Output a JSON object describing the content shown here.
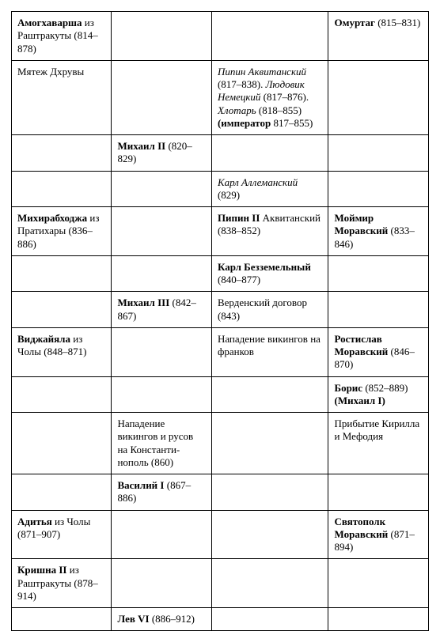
{
  "table": {
    "type": "table",
    "columns": 4,
    "col_widths_pct": [
      24,
      24,
      28,
      24
    ],
    "border_color": "#000000",
    "background_color": "#ffffff",
    "font_family": "Times New Roman",
    "base_fontsize_pt": 10,
    "rows": [
      {
        "c1": [
          {
            "t": "Амогхаварша",
            "b": true
          },
          {
            "t": " из Раштракуты (814–878)"
          }
        ],
        "c2": [],
        "c3": [],
        "c4": [
          {
            "t": "Омуртаг",
            "b": true
          },
          {
            "t": " (815–831)"
          }
        ]
      },
      {
        "c1": [
          {
            "t": "Мятеж Дхрувы"
          }
        ],
        "c2": [],
        "c3": [
          {
            "t": "Пипин Аквитанский",
            "i": true
          },
          {
            "t": " (817–838). "
          },
          {
            "t": "Людовик Немецкий",
            "i": true
          },
          {
            "t": " (817–876). "
          },
          {
            "t": "Хлотарь",
            "i": true
          },
          {
            "t": " (818–855) "
          },
          {
            "t": "(император",
            "b": true
          },
          {
            "t": " 817–855)"
          }
        ],
        "c4": []
      },
      {
        "c1": [],
        "c2": [
          {
            "t": "Михаил II",
            "b": true
          },
          {
            "t": " (820–829)"
          }
        ],
        "c3": [],
        "c4": []
      },
      {
        "c1": [],
        "c2": [],
        "c3": [
          {
            "t": "Карл Аллеманский",
            "i": true
          },
          {
            "t": " (829)"
          }
        ],
        "c4": []
      },
      {
        "c1": [
          {
            "t": "Михирабходжа",
            "b": true
          },
          {
            "t": " из Пратихары (836–886)"
          }
        ],
        "c2": [],
        "c3": [
          {
            "t": "Пипин II",
            "b": true
          },
          {
            "t": " Аквитанский (838–852)"
          }
        ],
        "c4": [
          {
            "t": "Моймир Моравский",
            "b": true
          },
          {
            "t": " (833–846)"
          }
        ]
      },
      {
        "c1": [],
        "c2": [],
        "c3": [
          {
            "t": "Карл Безземельный",
            "b": true
          },
          {
            "t": " (840–877)"
          }
        ],
        "c4": []
      },
      {
        "c1": [],
        "c2": [
          {
            "t": "Михаил III",
            "b": true
          },
          {
            "t": " (842–867)"
          }
        ],
        "c3": [
          {
            "t": "Верденский договор (843)"
          }
        ],
        "c4": []
      },
      {
        "c1": [
          {
            "t": "Виджайяла",
            "b": true
          },
          {
            "t": " из Чолы (848–871)"
          }
        ],
        "c2": [],
        "c3": [
          {
            "t": "Нападение викингов на франков"
          }
        ],
        "c4": [
          {
            "t": "Ростислав Моравский",
            "b": true
          },
          {
            "t": " (846–870)"
          }
        ]
      },
      {
        "c1": [],
        "c2": [],
        "c3": [],
        "c4": [
          {
            "t": "Борис",
            "b": true
          },
          {
            "t": " (852–889) "
          },
          {
            "t": "(Михаил I)",
            "b": true
          }
        ]
      },
      {
        "c1": [],
        "c2": [
          {
            "t": "Нападение викингов и русов на Константи­нополь (860)"
          }
        ],
        "c3": [],
        "c4": [
          {
            "t": "Прибытие Кирилла и Мефодия"
          }
        ]
      },
      {
        "c1": [],
        "c2": [
          {
            "t": "Василий I",
            "b": true
          },
          {
            "t": " (867–886)"
          }
        ],
        "c3": [],
        "c4": []
      },
      {
        "c1": [
          {
            "t": "Адитья",
            "b": true
          },
          {
            "t": " из Чолы (871–907)"
          }
        ],
        "c2": [],
        "c3": [],
        "c4": [
          {
            "t": "Святополк Моравский",
            "b": true
          },
          {
            "t": " (871–894)"
          }
        ]
      },
      {
        "c1": [
          {
            "t": "Кришна II",
            "b": true
          },
          {
            "t": " из Раштракуты (878–914)"
          }
        ],
        "c2": [],
        "c3": [],
        "c4": []
      },
      {
        "c1": [],
        "c2": [
          {
            "t": "Лев VI",
            "b": true
          },
          {
            "t": " (886–912)"
          }
        ],
        "c3": [],
        "c4": []
      }
    ]
  }
}
